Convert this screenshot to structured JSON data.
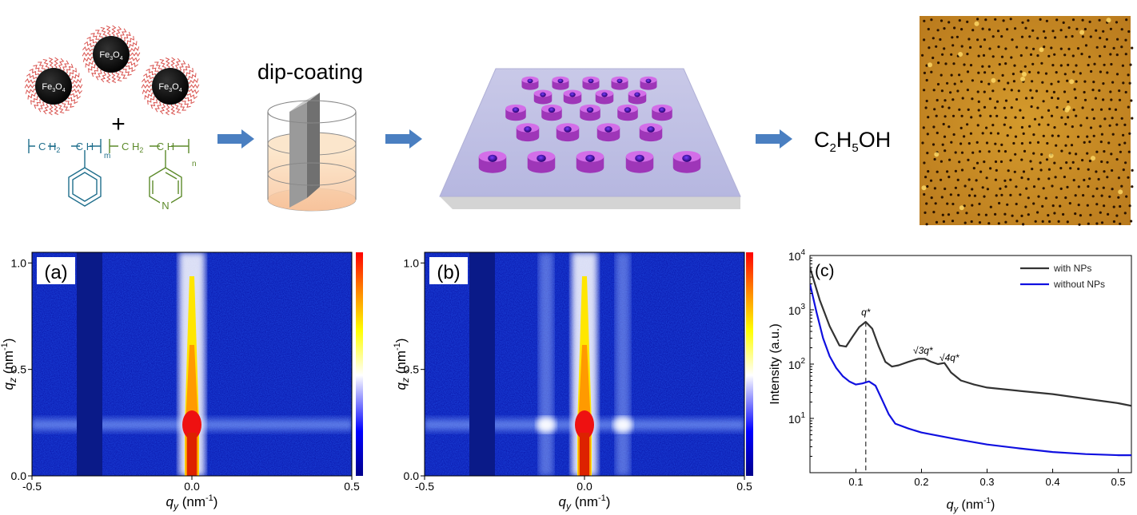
{
  "scheme": {
    "np_label": {
      "base": "Fe",
      "sub1": "3",
      "mid": "O",
      "sub2": "4"
    },
    "plus": "+",
    "polymer": {
      "ch": "C H",
      "ch2": "C H",
      "ch2_sub": "2",
      "block1_sub": "m",
      "block2_sub": "n",
      "pyridine_n": "N"
    },
    "dip_coating": "dip-coating",
    "solvent": {
      "c": "C",
      "c_sub": "2",
      "h": "H",
      "h_sub": "5",
      "oh": "OH"
    },
    "colors": {
      "arrow": "#4a7fc1",
      "np_core": "#000000",
      "ligand": "#d9534f",
      "polymer_ps": "#1f6e8c",
      "polymer_p4vp": "#5c8a2a",
      "cylinder": "#b04bc8",
      "afm": "#c98b22"
    }
  },
  "chart_data": [
    {
      "type": "heatmap",
      "panel": "(a)",
      "xlabel": {
        "main": "q",
        "sub": "y",
        "unit": " (nm",
        "sup": "-1",
        "close": ")"
      },
      "ylabel": {
        "main": "q",
        "sub": "z",
        "unit": " (nm",
        "sup": "-1",
        "close": ")"
      },
      "xlim": [
        -0.5,
        0.5
      ],
      "ylim": [
        0.0,
        1.05
      ],
      "xticks": [
        "-0.5",
        "0.0",
        "0.5"
      ],
      "yticks": [
        "0.0",
        "0.5",
        "1.0"
      ],
      "beamstop_qy": [
        -0.36,
        -0.28
      ],
      "specular_peak_qz": 0.24,
      "side_peaks_qy": [],
      "colorscale": [
        "#00008b",
        "#0000ff",
        "#ffffff",
        "#ffff00",
        "#ff8c00",
        "#ff0000"
      ]
    },
    {
      "type": "heatmap",
      "panel": "(b)",
      "xlabel": {
        "main": "q",
        "sub": "y",
        "unit": " (nm",
        "sup": "-1",
        "close": ")"
      },
      "ylabel": {
        "main": "q",
        "sub": "z",
        "unit": " (nm",
        "sup": "-1",
        "close": ")"
      },
      "xlim": [
        -0.5,
        0.5
      ],
      "ylim": [
        0.0,
        1.05
      ],
      "xticks": [
        "-0.5",
        "0.0",
        "0.5"
      ],
      "yticks": [
        "0.0",
        "0.5",
        "1.0"
      ],
      "beamstop_qy": [
        -0.36,
        -0.28
      ],
      "specular_peak_qz": 0.24,
      "side_peaks_qy": [
        -0.12,
        0.12
      ],
      "colorscale": [
        "#00008b",
        "#0000ff",
        "#ffffff",
        "#ffff00",
        "#ff8c00",
        "#ff0000"
      ]
    },
    {
      "type": "line",
      "panel": "(c)",
      "xlabel": {
        "main": "q",
        "sub": "y",
        "unit": " (nm",
        "sup": "-1",
        "close": ")"
      },
      "ylabel": "Intensity (a.u.)",
      "xlim": [
        0.03,
        0.52
      ],
      "ylim_log10": [
        0.0,
        4.0
      ],
      "xticks": [
        0.1,
        0.2,
        0.3,
        0.4,
        0.5
      ],
      "ytick_exponents": [
        1,
        2,
        3,
        4
      ],
      "ytick_base": "10",
      "legend_position": "top-right",
      "series": [
        {
          "name": "with NPs",
          "color": "#333333",
          "x": [
            0.03,
            0.045,
            0.06,
            0.075,
            0.085,
            0.095,
            0.105,
            0.115,
            0.125,
            0.135,
            0.145,
            0.155,
            0.165,
            0.18,
            0.195,
            0.205,
            0.215,
            0.225,
            0.235,
            0.245,
            0.26,
            0.28,
            0.3,
            0.35,
            0.4,
            0.45,
            0.5,
            0.52
          ],
          "y": [
            6000,
            1500,
            500,
            220,
            210,
            320,
            480,
            600,
            450,
            210,
            110,
            90,
            95,
            110,
            125,
            125,
            110,
            100,
            105,
            70,
            50,
            42,
            37,
            32,
            28,
            23,
            19,
            17
          ]
        },
        {
          "name": "without NPs",
          "color": "#1010e0",
          "x": [
            0.03,
            0.04,
            0.05,
            0.06,
            0.07,
            0.08,
            0.09,
            0.1,
            0.11,
            0.12,
            0.13,
            0.14,
            0.15,
            0.16,
            0.18,
            0.2,
            0.25,
            0.3,
            0.35,
            0.4,
            0.45,
            0.5,
            0.52
          ],
          "y": [
            3000,
            900,
            300,
            140,
            85,
            60,
            48,
            42,
            44,
            48,
            40,
            22,
            12,
            8,
            6.5,
            5.5,
            4.2,
            3.3,
            2.8,
            2.4,
            2.2,
            2.1,
            2.1
          ]
        }
      ],
      "annotations": {
        "qstar": {
          "text": "q*",
          "x": 0.115
        },
        "sqrt3": {
          "text": "√3q*"
        },
        "sqrt4": {
          "text": "√4q*"
        }
      }
    }
  ]
}
